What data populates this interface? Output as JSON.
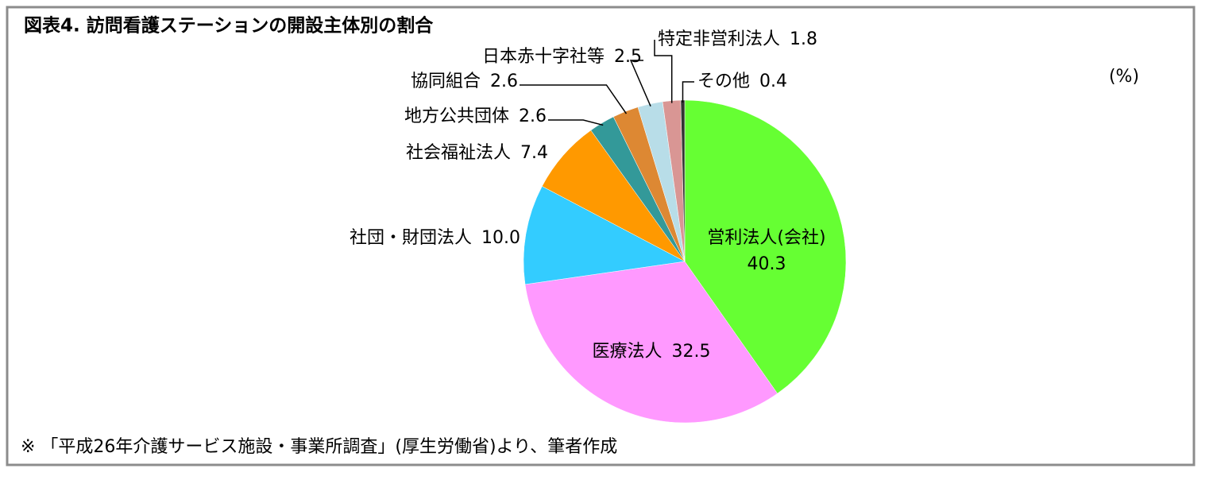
{
  "chart_data": {
    "type": "pie",
    "title": "図表4. 訪問看護ステーションの開設主体別の割合",
    "unit": "(%)",
    "note": "※ 「平成26年介護サービス施設・事業所調査」(厚生労働省)より、筆者作成",
    "categories": [
      "営利法人(会社)",
      "医療法人",
      "社団・財団法人",
      "社会福祉法人",
      "地方公共団体",
      "協同組合",
      "日本赤十字社等",
      "特定非営利法人",
      "その他"
    ],
    "values": [
      40.3,
      32.5,
      10.0,
      7.4,
      2.6,
      2.6,
      2.5,
      1.8,
      0.4
    ],
    "value_labels": [
      "40.3",
      "32.5",
      "10.0",
      "7.4",
      "2.6",
      "2.6",
      "2.5",
      "1.8",
      "0.4"
    ],
    "colors": [
      "#66ff33",
      "#ff99ff",
      "#33ccff",
      "#ff9900",
      "#339999",
      "#dd8833",
      "#b8dde8",
      "#d99694",
      "#333333"
    ]
  }
}
